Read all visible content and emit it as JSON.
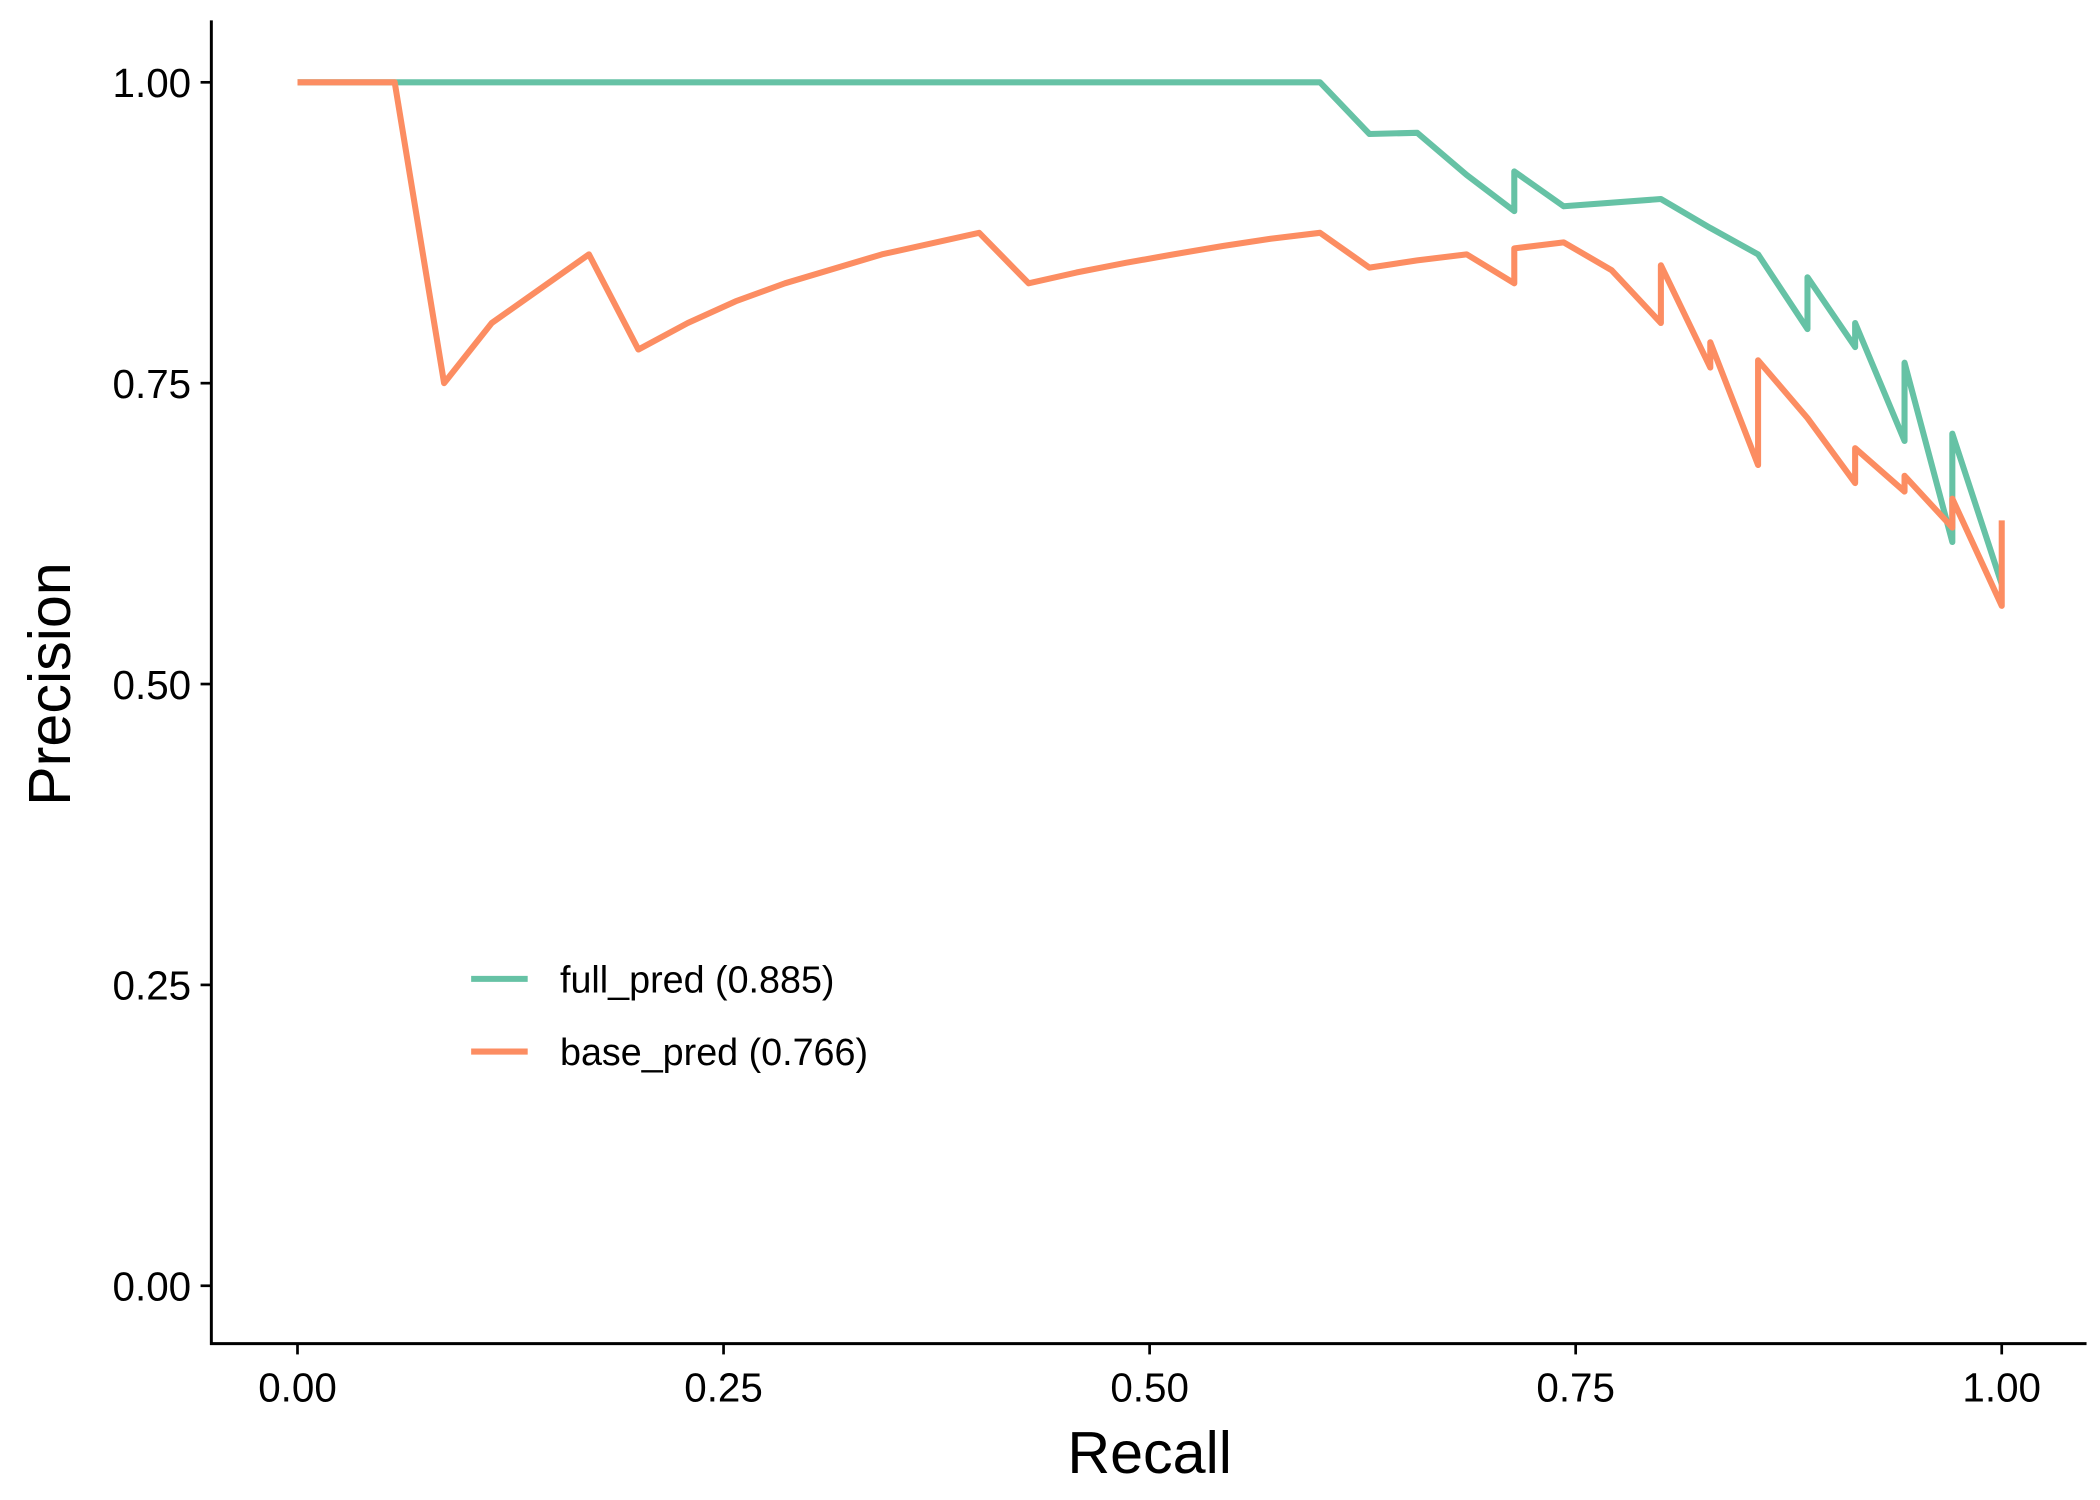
{
  "chart_data": {
    "type": "line",
    "title": "",
    "xlabel": "Recall",
    "ylabel": "Precision",
    "xlim": [
      0,
      1
    ],
    "ylim": [
      0,
      1
    ],
    "xticks": [
      "0.00",
      "0.25",
      "0.50",
      "0.75",
      "1.00"
    ],
    "yticks": [
      "0.00",
      "0.25",
      "0.50",
      "0.75",
      "1.00"
    ],
    "grid": false,
    "legend_position": "bottom-left inside",
    "series": [
      {
        "name": "full_pred (0.885)",
        "color": "#66C2A5",
        "x": [
          0,
          0.6,
          0.629,
          0.657,
          0.686,
          0.714,
          0.714,
          0.743,
          0.8,
          0.829,
          0.857,
          0.886,
          0.886,
          0.914,
          0.914,
          0.943,
          0.943,
          0.971,
          0.971,
          1.0
        ],
        "y": [
          1.0,
          1.0,
          0.957,
          0.958,
          0.923,
          0.893,
          0.926,
          0.897,
          0.903,
          0.879,
          0.857,
          0.795,
          0.838,
          0.78,
          0.8,
          0.702,
          0.767,
          0.618,
          0.708,
          0.583
        ]
      },
      {
        "name": "base_pred (0.766)",
        "color": "#FC8D62",
        "x": [
          0,
          0.057,
          0.086,
          0.114,
          0.171,
          0.2,
          0.229,
          0.257,
          0.286,
          0.343,
          0.4,
          0.429,
          0.457,
          0.486,
          0.514,
          0.543,
          0.571,
          0.6,
          0.629,
          0.657,
          0.686,
          0.714,
          0.714,
          0.743,
          0.771,
          0.8,
          0.8,
          0.829,
          0.829,
          0.857,
          0.857,
          0.886,
          0.914,
          0.914,
          0.943,
          0.943,
          0.971,
          0.971,
          1.0,
          1.0
        ],
        "y": [
          1.0,
          1.0,
          0.75,
          0.8,
          0.857,
          0.778,
          0.8,
          0.818,
          0.833,
          0.857,
          0.875,
          0.833,
          0.842,
          0.85,
          0.857,
          0.864,
          0.87,
          0.875,
          0.846,
          0.852,
          0.857,
          0.833,
          0.862,
          0.867,
          0.844,
          0.8,
          0.848,
          0.763,
          0.784,
          0.682,
          0.769,
          0.721,
          0.667,
          0.696,
          0.66,
          0.673,
          0.63,
          0.654,
          0.565,
          0.636
        ]
      }
    ]
  }
}
